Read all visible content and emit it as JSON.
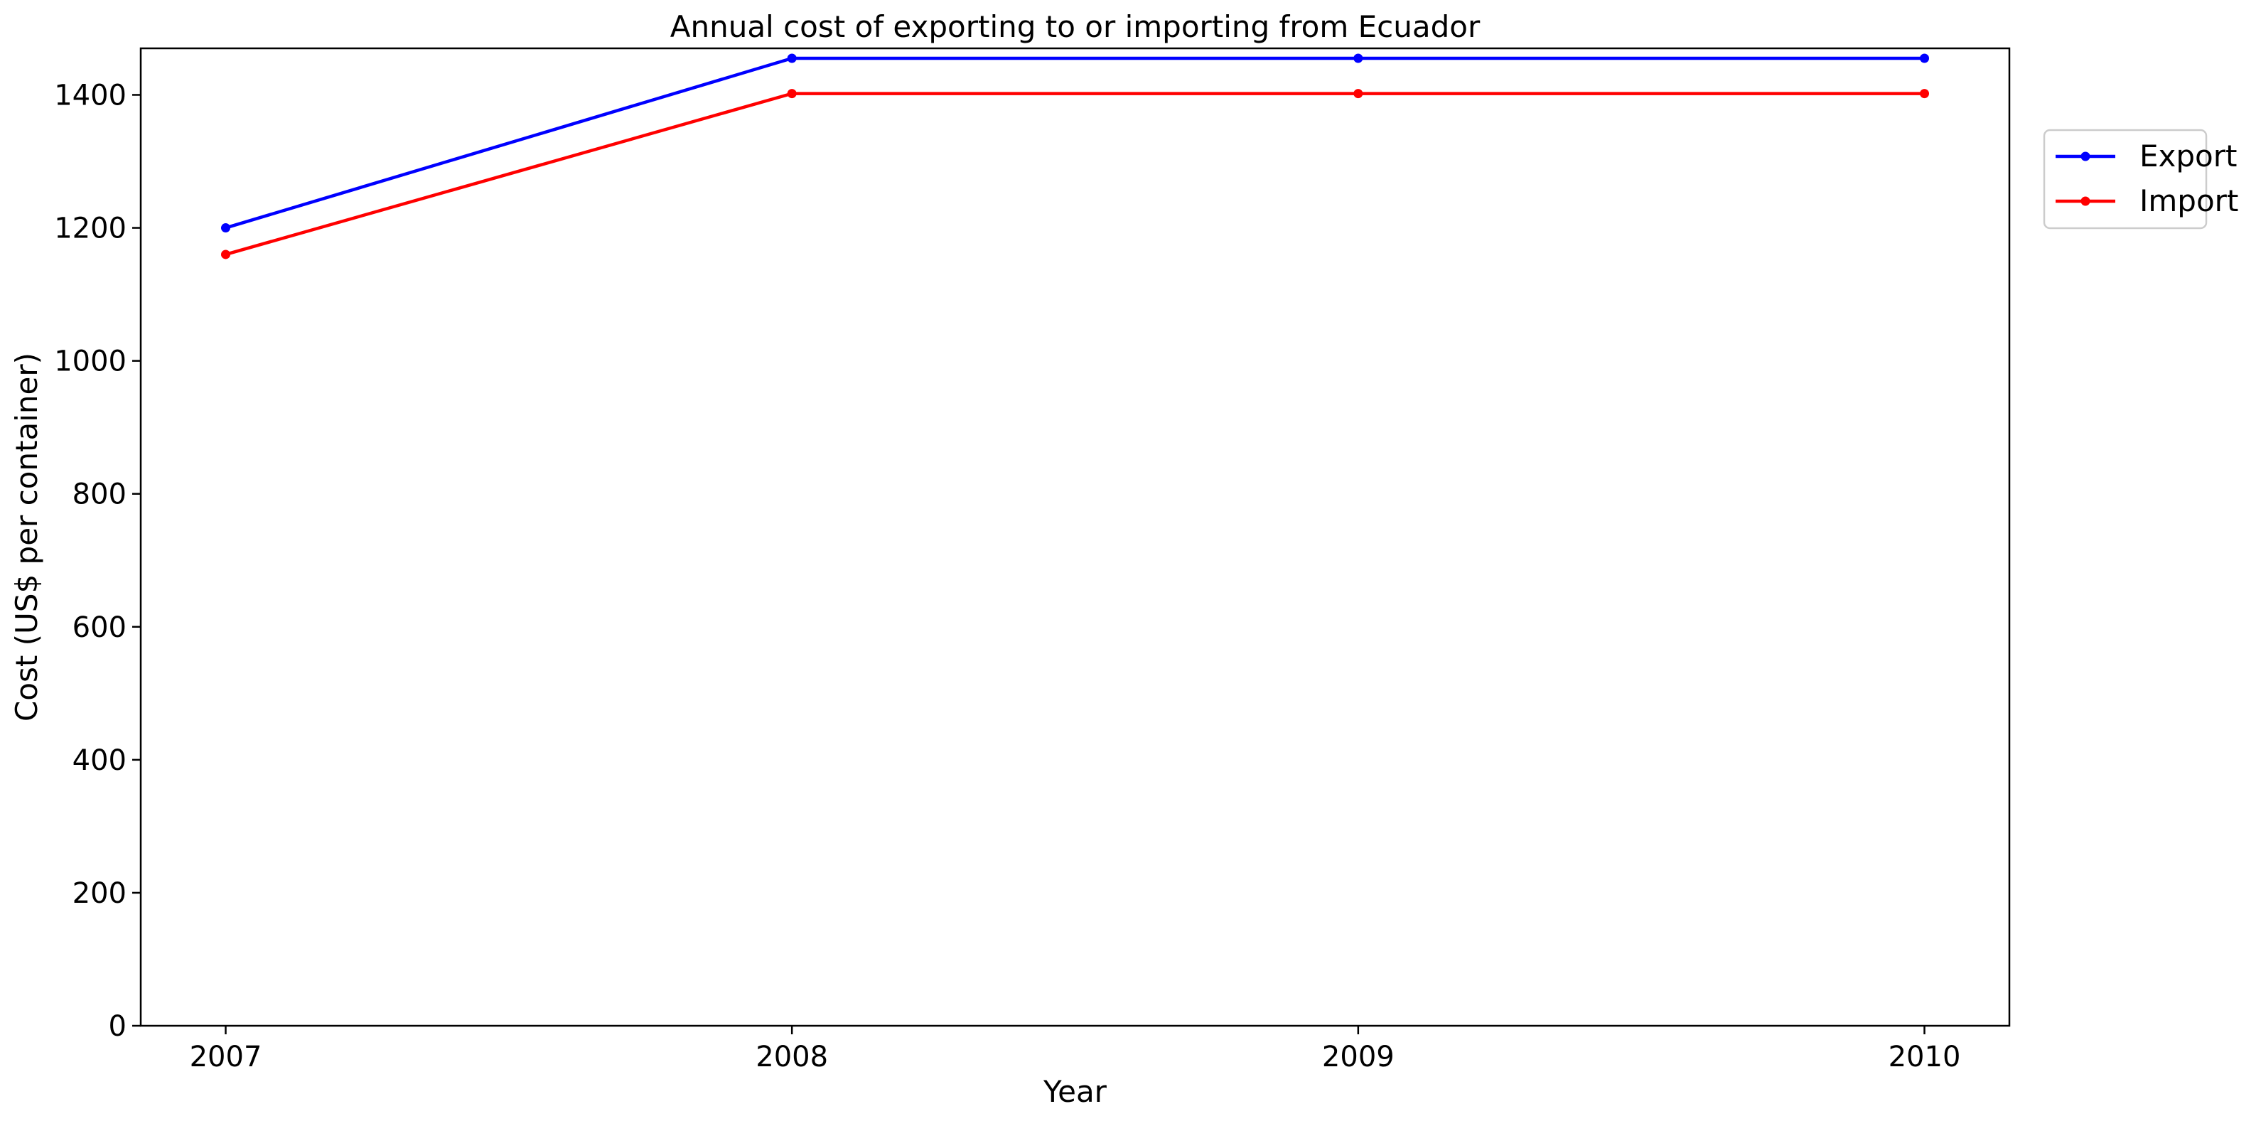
{
  "chart_data": {
    "type": "line",
    "title": "Annual cost of exporting to or importing from Ecuador",
    "xlabel": "Year",
    "ylabel": "Cost (US$ per container)",
    "x": [
      "2007",
      "2008",
      "2009",
      "2010"
    ],
    "xlim": [
      2006.85,
      2010.15
    ],
    "ylim": [
      0,
      1470
    ],
    "yticks": [
      0,
      200,
      400,
      600,
      800,
      1000,
      1200,
      1400
    ],
    "grid": false,
    "legend_position": "outside-right-top",
    "series": [
      {
        "name": "Export",
        "color": "#0000ff",
        "values": [
          1200,
          1455,
          1455,
          1455
        ]
      },
      {
        "name": "Import",
        "color": "#ff0000",
        "values": [
          1160,
          1402,
          1402,
          1402
        ]
      }
    ]
  }
}
